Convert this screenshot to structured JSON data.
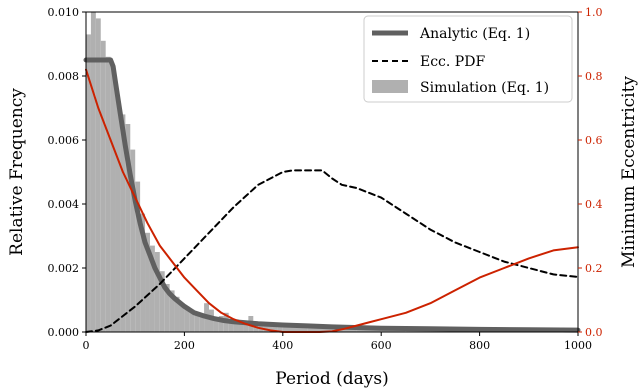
{
  "chart_data": {
    "type": "line",
    "xlabel": "Period (days)",
    "ylabel_left": "Relative Frequency",
    "ylabel_right": "Minimum Eccentricity",
    "xlim": [
      0,
      1000
    ],
    "ylim_left": [
      0,
      0.01
    ],
    "ylim_right": [
      0,
      1.0
    ],
    "x_ticks": [
      0,
      200,
      400,
      600,
      800,
      1000
    ],
    "x_tick_labels": [
      "0",
      "200",
      "400",
      "600",
      "800",
      "1000"
    ],
    "y_left_ticks": [
      0,
      0.002,
      0.004,
      0.006,
      0.008,
      0.01
    ],
    "y_left_tick_labels": [
      "0.000",
      "0.002",
      "0.004",
      "0.006",
      "0.008",
      "0.010"
    ],
    "y_right_ticks": [
      0,
      0.2,
      0.4,
      0.6,
      0.8,
      1.0
    ],
    "y_right_tick_labels": [
      "0.0",
      "0.2",
      "0.4",
      "0.6",
      "0.8",
      "1.0"
    ],
    "grid": false,
    "legend_position": "top-right",
    "colors": {
      "analytic": "#606060",
      "ecc_pdf": "#000000",
      "simulation": "#b0b0b0",
      "min_ecc": "#cc2200",
      "right_axis": "#cc2200"
    },
    "legend": [
      {
        "label": "Analytic (Eq. 1)",
        "style": "thick-solid-gray"
      },
      {
        "label": "Ecc. PDF",
        "style": "dashed-black"
      },
      {
        "label": "Simulation (Eq. 1)",
        "style": "gray-patch"
      }
    ],
    "series": [
      {
        "name": "Analytic (Eq. 1)",
        "axis": "left",
        "x": [
          0,
          10,
          20,
          30,
          40,
          50,
          55,
          60,
          70,
          80,
          90,
          100,
          110,
          120,
          130,
          140,
          150,
          160,
          170,
          180,
          200,
          220,
          240,
          260,
          280,
          300,
          350,
          400,
          450,
          500,
          600,
          700,
          800,
          900,
          1000
        ],
        "y": [
          0.0085,
          0.0085,
          0.0085,
          0.0085,
          0.0085,
          0.0085,
          0.0083,
          0.0078,
          0.0068,
          0.0058,
          0.0049,
          0.0041,
          0.0034,
          0.0028,
          0.0024,
          0.002,
          0.0017,
          0.0014,
          0.0012,
          0.00105,
          0.0008,
          0.0006,
          0.0005,
          0.00042,
          0.00036,
          0.00032,
          0.00026,
          0.00022,
          0.00019,
          0.00016,
          0.00012,
          0.0001,
          8e-05,
          7e-05,
          6e-05
        ]
      },
      {
        "name": "Ecc. PDF",
        "axis": "left",
        "x": [
          0,
          25,
          50,
          75,
          100,
          150,
          200,
          250,
          300,
          350,
          400,
          420,
          450,
          480,
          500,
          520,
          550,
          600,
          650,
          700,
          750,
          800,
          850,
          900,
          950,
          1000
        ],
        "y": [
          0.0,
          5e-05,
          0.0002,
          0.0005,
          0.0008,
          0.0015,
          0.0023,
          0.0031,
          0.0039,
          0.0046,
          0.005,
          0.00505,
          0.00505,
          0.00505,
          0.0048,
          0.0046,
          0.0045,
          0.0042,
          0.0037,
          0.0032,
          0.0028,
          0.0025,
          0.0022,
          0.002,
          0.0018,
          0.00172
        ]
      },
      {
        "name": "",
        "axis": "right",
        "x": [
          0,
          25,
          50,
          75,
          100,
          125,
          150,
          175,
          200,
          225,
          250,
          275,
          300,
          325,
          350,
          375,
          400,
          425,
          450,
          475,
          500,
          525,
          550,
          575,
          600,
          650,
          700,
          750,
          800,
          850,
          900,
          950,
          1000
        ],
        "y": [
          0.82,
          0.7,
          0.6,
          0.5,
          0.42,
          0.34,
          0.27,
          0.22,
          0.17,
          0.13,
          0.09,
          0.06,
          0.04,
          0.025,
          0.013,
          0.005,
          0.0,
          0.0,
          0.0,
          0.0,
          0.002,
          0.01,
          0.02,
          0.03,
          0.04,
          0.06,
          0.09,
          0.13,
          0.17,
          0.2,
          0.23,
          0.255,
          0.265
        ]
      }
    ],
    "histogram": {
      "name": "Simulation (Eq. 1)",
      "axis": "left",
      "bin_width": 10,
      "bin_starts": [
        0,
        10,
        20,
        30,
        40,
        50,
        60,
        70,
        80,
        90,
        100,
        110,
        120,
        130,
        140,
        150,
        160,
        170,
        180,
        190,
        200,
        210,
        220,
        230,
        240,
        250,
        260,
        270,
        280,
        290,
        300,
        310,
        320,
        330,
        340,
        350,
        360,
        370,
        380,
        390,
        400,
        450,
        500,
        550,
        600,
        650,
        700,
        750,
        800,
        850,
        900,
        950
      ],
      "values": [
        0.0093,
        0.0102,
        0.0098,
        0.0091,
        0.0086,
        0.0083,
        0.0073,
        0.0068,
        0.0065,
        0.0057,
        0.0047,
        0.0037,
        0.0031,
        0.0027,
        0.0025,
        0.0019,
        0.0015,
        0.0013,
        0.0011,
        0.0009,
        0.0008,
        0.0007,
        0.0006,
        0.0005,
        0.0009,
        0.0007,
        0.0004,
        0.0005,
        0.0006,
        0.0004,
        0.0004,
        0.0003,
        0.0003,
        0.0005,
        0.0003,
        0.0002,
        0.0003,
        0.0002,
        0.0002,
        0.0002,
        0.0002,
        0.0002,
        0.00015,
        0.00013,
        0.00012,
        0.0001,
        0.0001,
        9e-05,
        8e-05,
        7e-05,
        6e-05,
        6e-05
      ]
    }
  }
}
